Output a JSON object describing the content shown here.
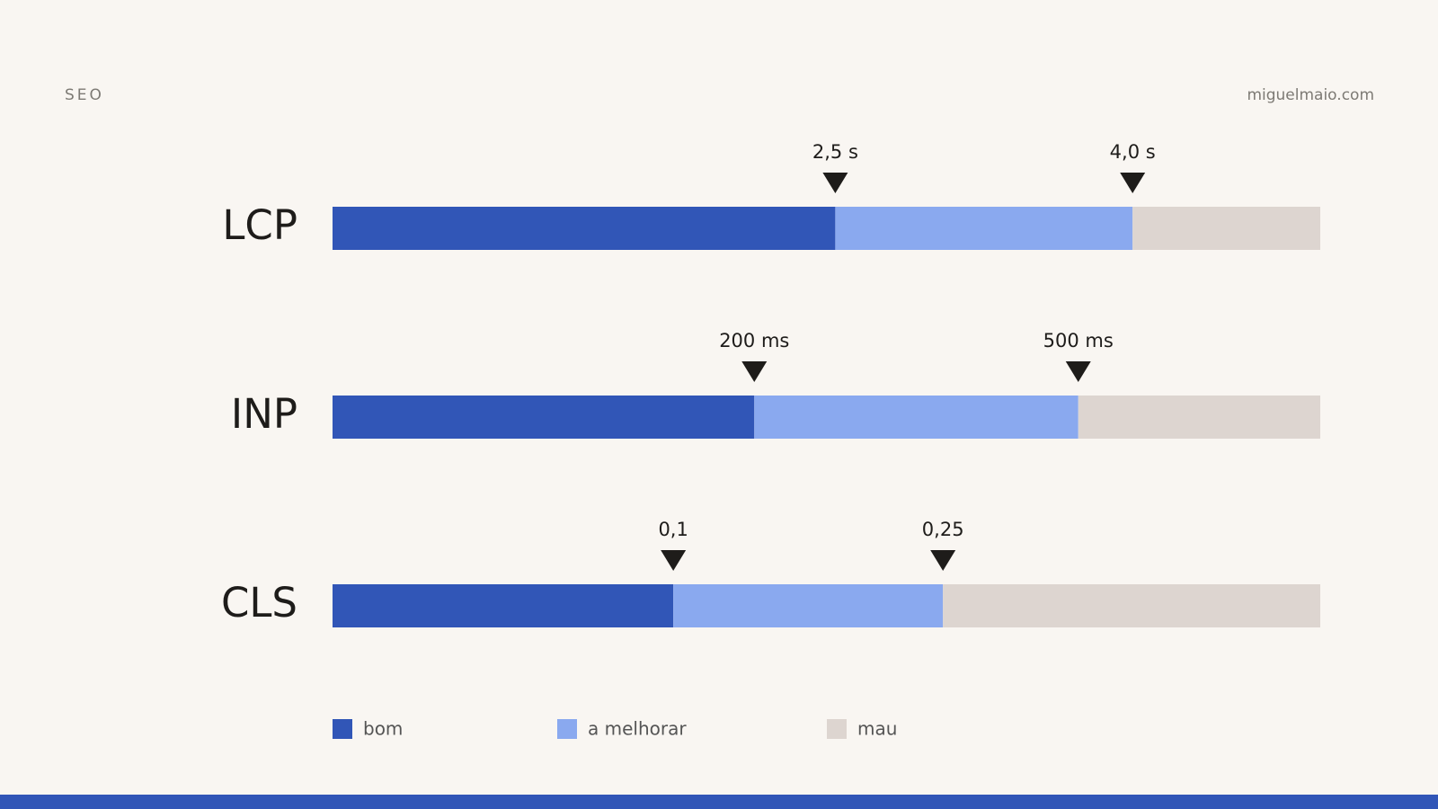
{
  "header": {
    "section": "SEO",
    "site": "miguelmaio.com"
  },
  "metrics": [
    {
      "name": "LCP",
      "thresholds": [
        "2,5 s",
        "4,0 s"
      ]
    },
    {
      "name": "INP",
      "thresholds": [
        "200 ms",
        "500 ms"
      ]
    },
    {
      "name": "CLS",
      "thresholds": [
        "0,1",
        "0,25"
      ]
    }
  ],
  "legend": [
    {
      "label": "bom",
      "color": "#3156b7"
    },
    {
      "label": "a melhorar",
      "color": "#8aa9ef"
    },
    {
      "label": "mau",
      "color": "#ddd5d0"
    }
  ]
}
